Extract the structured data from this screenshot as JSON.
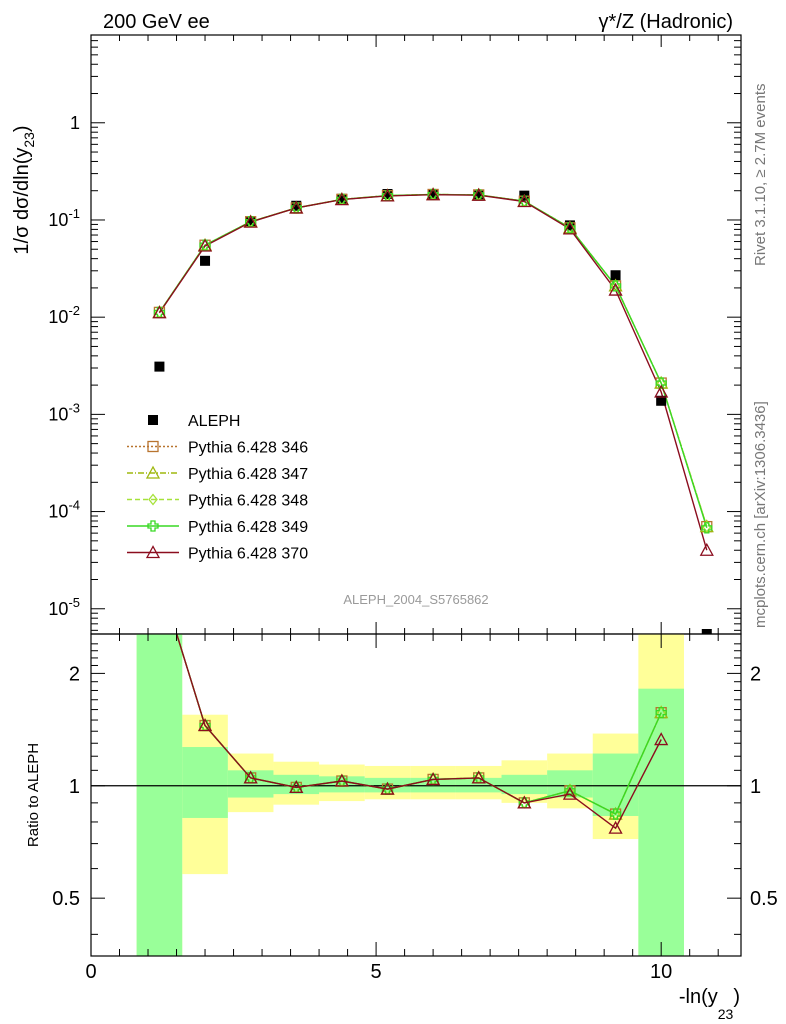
{
  "header": {
    "left": "200 GeV ee",
    "right": "γ*/Z (Hadronic)"
  },
  "side_labels": {
    "rivet": "Rivet 3.1.10, ≥ 2.7M events",
    "mcplots": "mcplots.cern.ch [arXiv:1306.3436]"
  },
  "watermark": "ALEPH_2004_S5765862",
  "chart_data": [
    {
      "type": "scatter",
      "panel": "main",
      "ylabel": "1/σ dσ/dln(y23)",
      "yscale": "log",
      "ylim": [
        5.5e-06,
        8
      ],
      "xlim": [
        0,
        11.4
      ],
      "yticks": [
        "10^-5",
        "10^-4",
        "10^-3",
        "10^-2",
        "10^-1",
        "1"
      ],
      "legend_position": "left",
      "x": [
        1.2,
        2.0,
        2.8,
        3.6,
        4.4,
        5.2,
        6.0,
        6.8,
        7.6,
        8.4,
        9.2,
        10.0,
        10.8
      ],
      "series": [
        {
          "name": "ALEPH",
          "color": "#000000",
          "marker": "square-filled",
          "values": [
            0.0031,
            0.038,
            0.095,
            0.14,
            0.165,
            0.185,
            0.182,
            0.178,
            0.178,
            0.088,
            0.027,
            0.00138,
            5.5e-06
          ]
        },
        {
          "name": "Pythia 6.428 346",
          "color": "#b8742f",
          "marker": "square-open",
          "dash": "2,2",
          "values": [
            0.0112,
            0.055,
            0.096,
            0.133,
            0.163,
            0.178,
            0.183,
            0.181,
            0.156,
            0.083,
            0.021,
            0.0021,
            7e-05
          ]
        },
        {
          "name": "Pythia 6.428 347",
          "color": "#9fb80f",
          "marker": "triangle-open",
          "dash": "6,2,1,2",
          "values": [
            0.0112,
            0.055,
            0.096,
            0.133,
            0.163,
            0.178,
            0.183,
            0.181,
            0.156,
            0.083,
            0.021,
            0.0021,
            7e-05
          ]
        },
        {
          "name": "Pythia 6.428 348",
          "color": "#a6e23a",
          "marker": "diamond-open",
          "dash": "5,3",
          "values": [
            0.0112,
            0.055,
            0.096,
            0.133,
            0.163,
            0.178,
            0.183,
            0.181,
            0.156,
            0.083,
            0.021,
            0.0021,
            7e-05
          ]
        },
        {
          "name": "Pythia 6.428 349",
          "color": "#39d924",
          "marker": "cross",
          "dash": "",
          "values": [
            0.0112,
            0.055,
            0.096,
            0.133,
            0.163,
            0.178,
            0.183,
            0.181,
            0.156,
            0.083,
            0.021,
            0.0021,
            6.8e-05
          ]
        },
        {
          "name": "Pythia 6.428 370",
          "color": "#8b0d1e",
          "marker": "triangle-open",
          "dash": "",
          "values": [
            0.0111,
            0.054,
            0.095,
            0.133,
            0.162,
            0.177,
            0.182,
            0.18,
            0.155,
            0.081,
            0.019,
            0.0017,
            4e-05
          ]
        }
      ]
    },
    {
      "type": "line",
      "panel": "ratio",
      "ylabel": "Ratio to ALEPH",
      "xlabel": "-ln(y23)",
      "yscale": "log",
      "ylim": [
        0.35,
        2.55
      ],
      "xlim": [
        0,
        11.4
      ],
      "xticks": [
        0,
        5,
        10
      ],
      "yticks": [
        0.5,
        1,
        2
      ],
      "reference": 1,
      "bands": {
        "x_edges": [
          0.8,
          1.6,
          2.4,
          3.2,
          4.0,
          4.8,
          5.6,
          6.4,
          7.2,
          8.0,
          8.8,
          9.6,
          10.4
        ],
        "yellow": [
          [
            0.3,
            2.7
          ],
          [
            0.58,
            1.55
          ],
          [
            0.85,
            1.22
          ],
          [
            0.89,
            1.16
          ],
          [
            0.91,
            1.14
          ],
          [
            0.92,
            1.13
          ],
          [
            0.92,
            1.13
          ],
          [
            0.92,
            1.13
          ],
          [
            0.9,
            1.17
          ],
          [
            0.87,
            1.22
          ],
          [
            0.72,
            1.38
          ],
          [
            0.3,
            2.7
          ]
        ],
        "green": [
          [
            0.3,
            2.7
          ],
          [
            0.82,
            1.27
          ],
          [
            0.93,
            1.1
          ],
          [
            0.95,
            1.07
          ],
          [
            0.96,
            1.06
          ],
          [
            0.96,
            1.05
          ],
          [
            0.96,
            1.05
          ],
          [
            0.96,
            1.05
          ],
          [
            0.95,
            1.07
          ],
          [
            0.93,
            1.1
          ],
          [
            0.83,
            1.22
          ],
          [
            0.3,
            1.82
          ]
        ]
      },
      "x": [
        1.2,
        2.0,
        2.8,
        3.6,
        4.4,
        5.2,
        6.0,
        6.8,
        7.6,
        8.4,
        9.2,
        10.0
      ],
      "series": [
        {
          "name": "Pythia 6.428 346",
          "color": "#b8742f",
          "marker": "square-open",
          "dash": "2,2",
          "values": [
            3.6,
            1.45,
            1.05,
            0.99,
            1.03,
            0.98,
            1.04,
            1.05,
            0.9,
            0.97,
            0.84,
            1.57
          ]
        },
        {
          "name": "Pythia 6.428 347",
          "color": "#9fb80f",
          "marker": "triangle-open",
          "dash": "6,2,1,2",
          "values": [
            3.6,
            1.45,
            1.05,
            0.99,
            1.03,
            0.98,
            1.04,
            1.05,
            0.9,
            0.97,
            0.84,
            1.57
          ]
        },
        {
          "name": "Pythia 6.428 348",
          "color": "#a6e23a",
          "marker": "diamond-open",
          "dash": "5,3",
          "values": [
            3.6,
            1.45,
            1.05,
            0.99,
            1.03,
            0.98,
            1.04,
            1.05,
            0.9,
            0.97,
            0.84,
            1.57
          ]
        },
        {
          "name": "Pythia 6.428 349",
          "color": "#39d924",
          "marker": "cross",
          "dash": "",
          "values": [
            3.6,
            1.45,
            1.05,
            0.99,
            1.03,
            0.98,
            1.04,
            1.05,
            0.9,
            0.97,
            0.84,
            1.57
          ]
        },
        {
          "name": "Pythia 6.428 370",
          "color": "#8b0d1e",
          "marker": "triangle-open",
          "dash": "",
          "values": [
            3.6,
            1.45,
            1.05,
            0.99,
            1.03,
            0.98,
            1.04,
            1.05,
            0.9,
            0.95,
            0.77,
            1.33
          ]
        }
      ]
    }
  ]
}
